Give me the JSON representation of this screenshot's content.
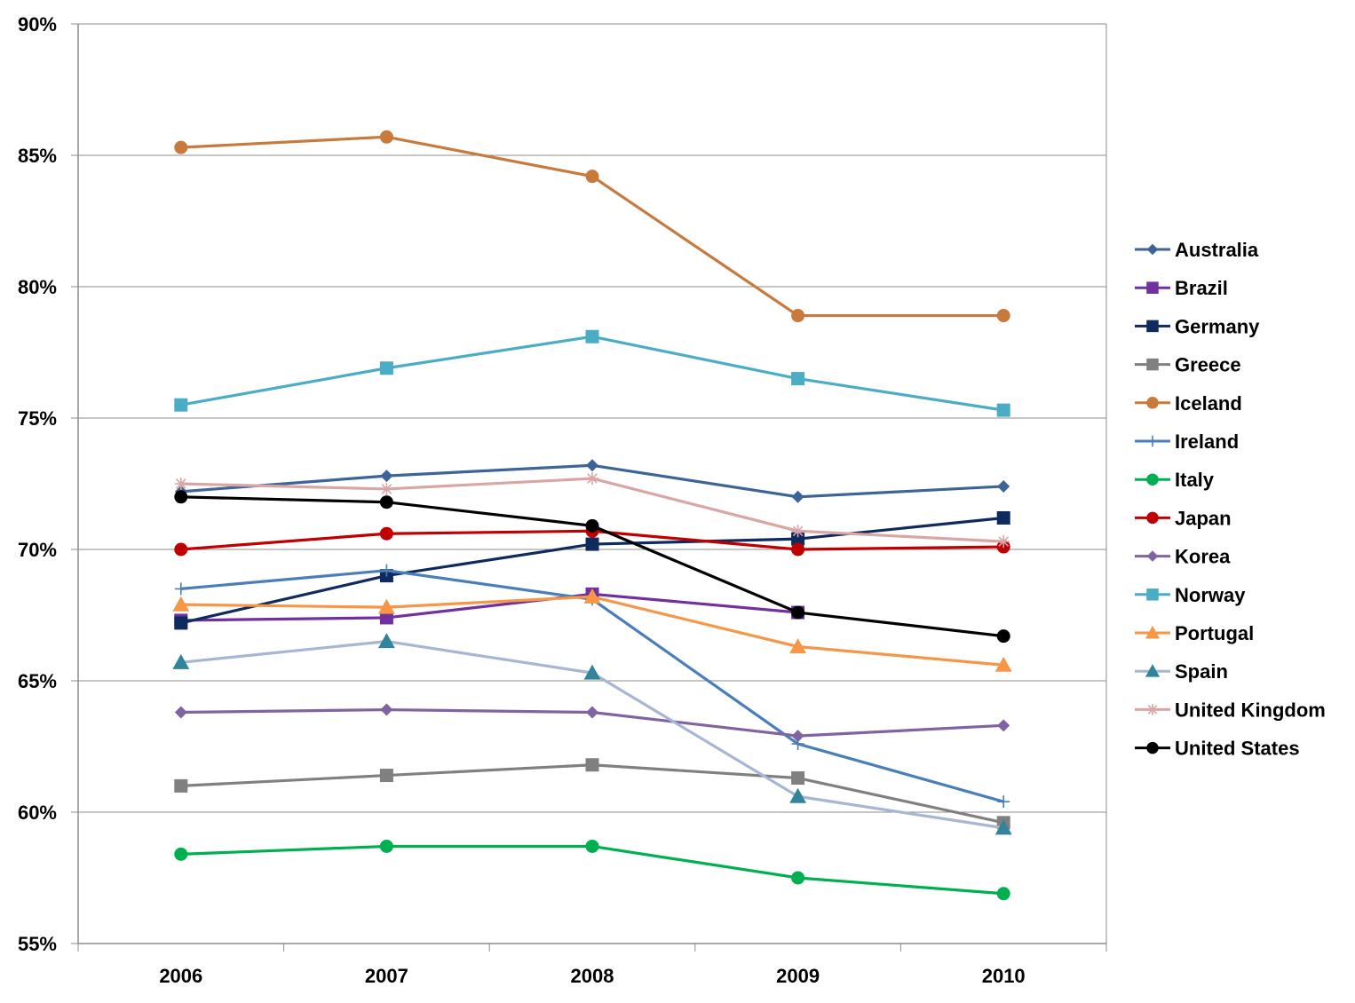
{
  "chart_data": {
    "type": "line",
    "title": "",
    "xlabel": "",
    "ylabel": "",
    "categories": [
      "2006",
      "2007",
      "2008",
      "2009",
      "2010"
    ],
    "y_ticks": [
      "55%",
      "60%",
      "65%",
      "70%",
      "75%",
      "80%",
      "85%",
      "90%"
    ],
    "ylim": [
      55,
      90
    ],
    "grid": true,
    "legend_position": "right",
    "series": [
      {
        "name": "Australia",
        "color": "#3d6399",
        "marker": "diamond",
        "values": [
          72.2,
          72.8,
          73.2,
          72.0,
          72.4
        ]
      },
      {
        "name": "Brazil",
        "color": "#7030a0",
        "marker": "square",
        "values": [
          67.3,
          67.4,
          68.3,
          67.6,
          null
        ]
      },
      {
        "name": "Germany",
        "color": "#0f2a5e",
        "marker": "square",
        "values": [
          67.2,
          69.0,
          70.2,
          70.4,
          71.2
        ]
      },
      {
        "name": "Greece",
        "color": "#808080",
        "marker": "square",
        "values": [
          61.0,
          61.4,
          61.8,
          61.3,
          59.6
        ]
      },
      {
        "name": "Iceland",
        "color": "#c87a3c",
        "marker": "circle",
        "values": [
          85.3,
          85.7,
          84.2,
          78.9,
          78.9
        ]
      },
      {
        "name": "Ireland",
        "color": "#4a7ebb",
        "marker": "plus",
        "values": [
          68.5,
          69.2,
          68.1,
          62.6,
          60.4
        ]
      },
      {
        "name": "Italy",
        "color": "#00b050",
        "marker": "circle",
        "values": [
          58.4,
          58.7,
          58.7,
          57.5,
          56.9
        ]
      },
      {
        "name": "Japan",
        "color": "#c00000",
        "marker": "circle",
        "values": [
          70.0,
          70.6,
          70.7,
          70.0,
          70.1
        ]
      },
      {
        "name": "Korea",
        "color": "#8064a2",
        "marker": "diamond",
        "values": [
          63.8,
          63.9,
          63.8,
          62.9,
          63.3
        ]
      },
      {
        "name": "Norway",
        "color": "#4bacc6",
        "marker": "square",
        "values": [
          75.5,
          76.9,
          78.1,
          76.5,
          75.3
        ]
      },
      {
        "name": "Portugal",
        "color": "#f79646",
        "marker": "triangle",
        "values": [
          67.9,
          67.8,
          68.2,
          66.3,
          65.6
        ]
      },
      {
        "name": "Spain",
        "color": "#a6b6d4",
        "marker": "triangle",
        "marker_color": "#31849b",
        "values": [
          65.7,
          66.5,
          65.3,
          60.6,
          59.4
        ]
      },
      {
        "name": "United Kingdom",
        "color": "#d9a5a5",
        "marker": "star",
        "values": [
          72.5,
          72.3,
          72.7,
          70.7,
          70.3
        ]
      },
      {
        "name": "United States",
        "color": "#000000",
        "marker": "circle",
        "values": [
          72.0,
          71.8,
          70.9,
          67.6,
          66.7
        ]
      }
    ]
  }
}
